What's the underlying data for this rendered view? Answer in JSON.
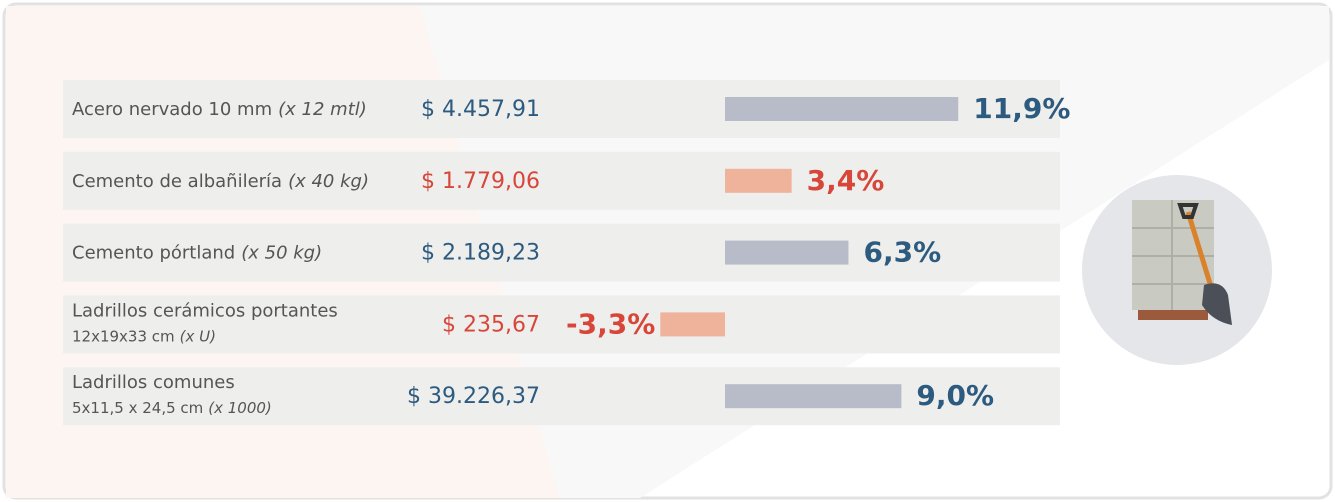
{
  "chart_data": {
    "type": "bar",
    "orientation": "horizontal",
    "rows": [
      {
        "name": "Acero nervado 10 mm",
        "unit": "(x 12 mtl)",
        "price": "$ 4.457,91",
        "value": 11.9,
        "value_label": "11,9%",
        "bar_color": "#b8bbc8",
        "text_color": "#2d5a7f"
      },
      {
        "name": "Cemento de albañilería",
        "unit": "(x 40 kg)",
        "price": "$ 1.779,06",
        "value": 3.4,
        "value_label": "3,4%",
        "bar_color": "#efb29b",
        "text_color": "#d8463a"
      },
      {
        "name": "Cemento pórtland",
        "unit": "(x 50 kg)",
        "price": "$ 2.189,23",
        "value": 6.3,
        "value_label": "6,3%",
        "bar_color": "#b8bbc8",
        "text_color": "#2d5a7f"
      },
      {
        "name": "Ladrillos cerámicos portantes",
        "size": "12x19x33 cm",
        "unit": "(x U)",
        "price": "$ 235,67",
        "value": -3.3,
        "value_label": "-3,3%",
        "bar_color": "#efb29b",
        "text_color": "#d8463a"
      },
      {
        "name": "Ladrillos comunes",
        "size": "5x11,5 x 24,5 cm",
        "unit": "(x 1000)",
        "price": "$ 39.226,37",
        "value": 9.0,
        "value_label": "9,0%",
        "bar_color": "#b8bbc8",
        "text_color": "#2d5a7f"
      }
    ]
  }
}
